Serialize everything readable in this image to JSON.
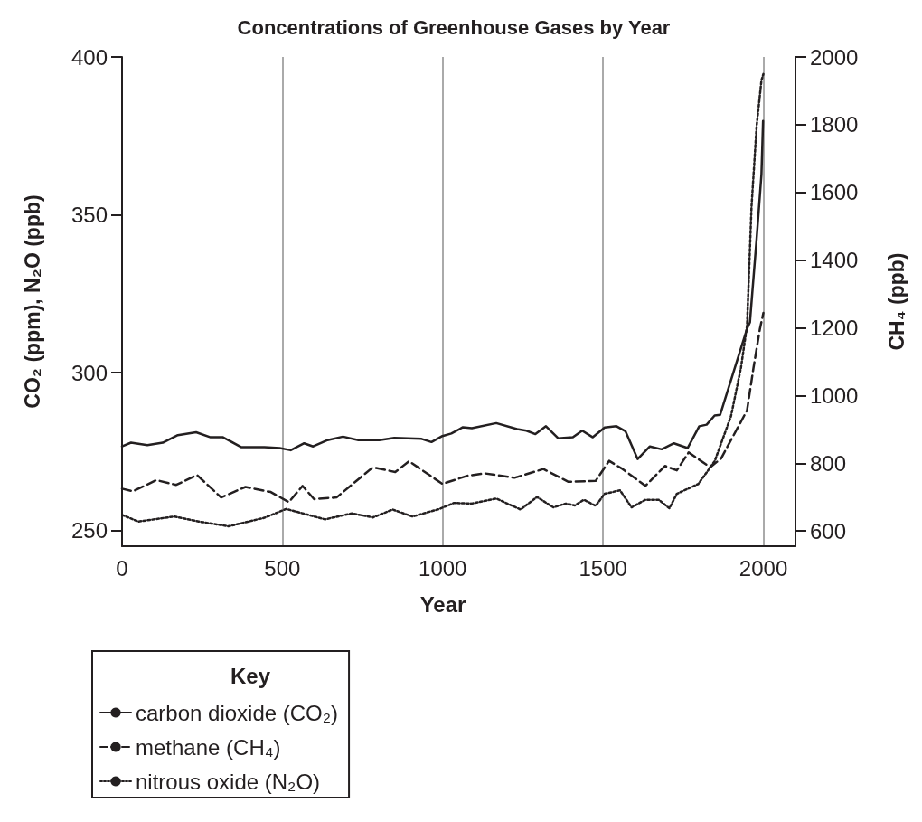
{
  "chart_data": {
    "type": "line",
    "title": "Concentrations of Greenhouse Gases by Year",
    "xlabel": "Year",
    "ylabel": "CO₂ (ppm), N₂O (ppb)",
    "y2label": "CH₄ (ppb)",
    "legend_title": "Key",
    "legend": "bottom left",
    "grid": "x",
    "marker": "none",
    "xlim": [
      0,
      2100
    ],
    "xticks": [
      0,
      500,
      1000,
      1500,
      2000
    ],
    "ylim": [
      245,
      400
    ],
    "yticks": [
      250,
      300,
      350,
      400
    ],
    "y2lim": [
      555,
      2000
    ],
    "y2ticks": [
      600,
      800,
      1000,
      1200,
      1400,
      1600,
      1800,
      2000
    ],
    "series": [
      {
        "name": "carbon dioxide (CO₂)",
        "color": "#231f20",
        "line_style": "solid",
        "x": [
          0,
          28,
          79,
          127,
          174,
          231,
          276,
          315,
          371,
          444,
          492,
          526,
          568,
          596,
          641,
          689,
          737,
          802,
          849,
          934,
          965,
          999,
          1027,
          1063,
          1091,
          1167,
          1232,
          1261,
          1289,
          1322,
          1360,
          1406,
          1435,
          1468,
          1505,
          1542,
          1570,
          1608,
          1646,
          1683,
          1721,
          1764,
          1800,
          1823,
          1848,
          1865,
          1949,
          1958,
          1979,
          1994,
          1999
        ],
        "values": [
          276.6,
          277.8,
          277.0,
          277.8,
          280.2,
          281.1,
          279.5,
          279.5,
          276.4,
          276.4,
          276.1,
          275.4,
          277.6,
          276.6,
          278.6,
          279.7,
          278.6,
          278.6,
          279.3,
          279.0,
          278.0,
          279.9,
          280.7,
          282.7,
          282.4,
          284.0,
          282.1,
          281.6,
          280.5,
          283.0,
          279.2,
          279.5,
          281.6,
          279.5,
          282.6,
          283.0,
          281.4,
          272.6,
          276.6,
          275.7,
          277.6,
          276.1,
          283.0,
          283.5,
          286.4,
          286.6,
          313.9,
          315.9,
          342.5,
          362.8,
          379.7
        ]
      },
      {
        "name": "methane (CH₄)",
        "color": "#231f20",
        "line_style": "dashed",
        "axis": "y2",
        "x": [
          0,
          34,
          107,
          169,
          234,
          309,
          385,
          464,
          520,
          563,
          599,
          669,
          782,
          852,
          895,
          999,
          1077,
          1131,
          1224,
          1314,
          1392,
          1477,
          1519,
          1561,
          1632,
          1693,
          1730,
          1767,
          1834,
          1868,
          1949,
          1969,
          1989,
          2000
        ],
        "values": [
          725,
          717,
          750,
          736,
          765,
          699,
          730,
          715,
          685,
          733,
          694,
          699,
          788,
          774,
          806,
          739,
          763,
          770,
          757,
          783,
          745,
          748,
          807,
          783,
          733,
          792,
          779,
          832,
          788,
          814,
          956,
          1081,
          1196,
          1244
        ]
      },
      {
        "name": "nitrous oxide (N₂O)",
        "color": "#231f20",
        "line_style": "dotted",
        "x": [
          0,
          51,
          163,
          239,
          332,
          444,
          512,
          633,
          717,
          782,
          844,
          906,
          990,
          1035,
          1091,
          1167,
          1243,
          1294,
          1345,
          1384,
          1412,
          1440,
          1477,
          1505,
          1553,
          1589,
          1632,
          1674,
          1707,
          1730,
          1797,
          1848,
          1899,
          1930,
          1949,
          1963,
          1979,
          1994,
          2000
        ],
        "values": [
          254.9,
          252.8,
          254.4,
          252.8,
          251.3,
          254.0,
          256.8,
          253.5,
          255.4,
          254.1,
          256.6,
          254.4,
          256.8,
          258.7,
          258.5,
          260.1,
          256.6,
          260.6,
          257.3,
          258.5,
          257.9,
          259.7,
          257.8,
          261.6,
          262.7,
          257.3,
          259.7,
          259.7,
          257.0,
          261.6,
          264.7,
          271.9,
          286.2,
          301.5,
          314.8,
          352.6,
          378.2,
          392.6,
          394.6
        ]
      }
    ]
  }
}
